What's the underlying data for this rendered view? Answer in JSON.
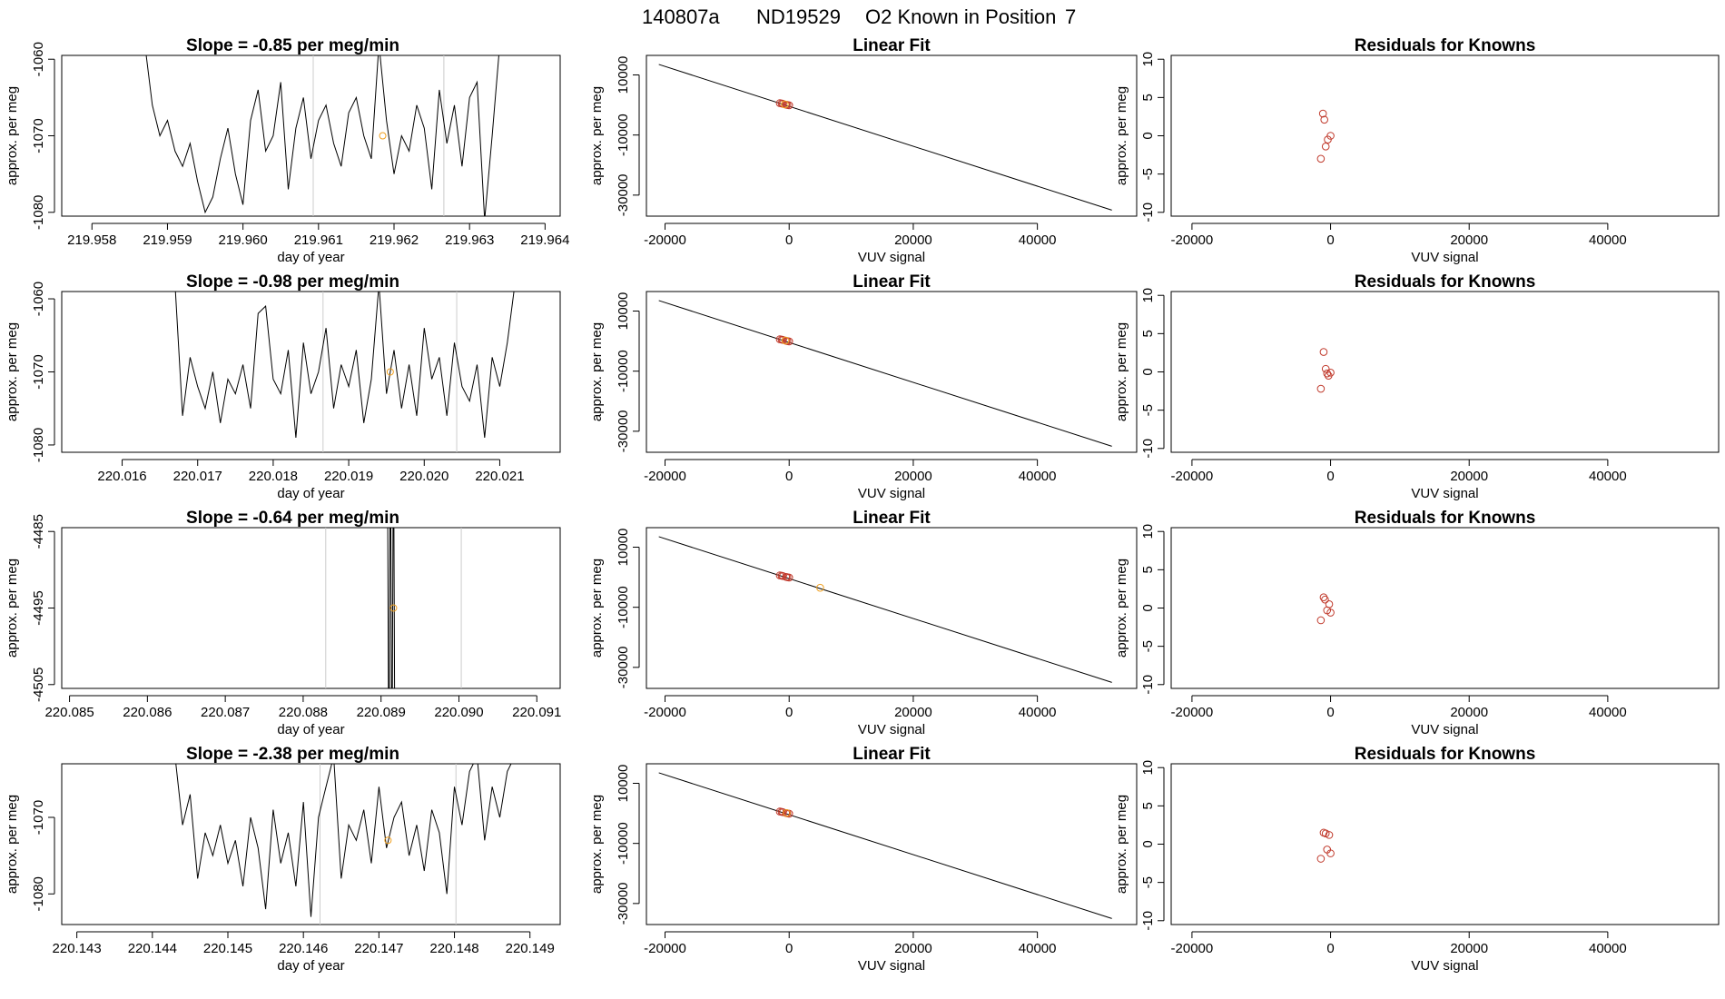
{
  "figure_title": {
    "run": "140807a",
    "sample": "ND19529",
    "desc": "O2 Known in Position",
    "position": "7"
  },
  "chart_data": [
    {
      "type": "line",
      "title_prefix": "Slope = ",
      "slope": "-0.85",
      "title_suffix": " per meg/min",
      "xlabel": "day of year",
      "ylabel": "approx. per meg",
      "xlim": [
        219.9576,
        219.9642
      ],
      "ylim": [
        -1080.5,
        -1059.5
      ],
      "xticks": [
        "219.958",
        "219.959",
        "219.960",
        "219.961",
        "219.962",
        "219.963",
        "219.964"
      ],
      "yticks": [
        "-1060",
        "-1070",
        "-1080"
      ],
      "x": [
        219.9587,
        219.9588,
        219.9589,
        219.959,
        219.9591,
        219.9592,
        219.9593,
        219.9594,
        219.9595,
        219.9596,
        219.9597,
        219.9598,
        219.9599,
        219.96,
        219.9601,
        219.9602,
        219.9603,
        219.9604,
        219.9605,
        219.9606,
        219.9607,
        219.9608,
        219.9609,
        219.961,
        219.9611,
        219.9612,
        219.9613,
        219.9614,
        219.9615,
        219.9616,
        219.9617,
        219.9618,
        219.9619,
        219.962,
        219.9621,
        219.9622,
        219.9623,
        219.9624,
        219.9625,
        219.9626,
        219.9627,
        219.9628,
        219.9629,
        219.963,
        219.9631,
        219.9632,
        219.9633,
        219.9634
      ],
      "y": [
        -1058,
        -1066,
        -1070,
        -1068,
        -1072,
        -1074,
        -1071,
        -1076,
        -1080,
        -1078,
        -1073,
        -1069,
        -1075,
        -1079,
        -1068,
        -1064,
        -1072,
        -1070,
        -1063,
        -1077,
        -1069,
        -1065,
        -1073,
        -1068,
        -1066,
        -1071,
        -1074,
        -1067,
        -1065,
        -1070,
        -1073,
        -1058,
        -1068,
        -1075,
        -1070,
        -1072,
        -1066,
        -1069,
        -1077,
        -1064,
        -1071,
        -1066,
        -1074,
        -1065,
        -1063,
        -1081,
        -1070,
        -1058
      ],
      "vlines": [
        219.96093,
        219.96266
      ],
      "known": {
        "x": 219.96185,
        "y": -1070
      }
    },
    {
      "type": "scatter",
      "title": "Linear Fit",
      "xlabel": "VUV signal",
      "ylabel": "approx. per meg",
      "xlim": [
        -23000,
        56000
      ],
      "ylim": [
        -37000,
        16500
      ],
      "xticks": [
        "-20000",
        "0",
        "20000",
        "40000"
      ],
      "xtick_values": [
        -20000,
        0,
        20000,
        40000
      ],
      "yticks": [
        "10000",
        "-10000",
        "-30000"
      ],
      "ytick_values": [
        10000,
        -10000,
        -30000
      ],
      "line": {
        "x": [
          -21000,
          52000
        ],
        "y": [
          13500,
          -35000
        ]
      },
      "points": [
        {
          "x": -1500,
          "y": 600
        },
        {
          "x": -1000,
          "y": 400
        },
        {
          "x": -500,
          "y": 100
        },
        {
          "x": 0,
          "y": -100
        },
        {
          "x": -1200,
          "y": 500
        },
        {
          "x": -300,
          "y": 0
        }
      ],
      "known_points": [
        {
          "x": -700,
          "y": 200
        }
      ]
    },
    {
      "type": "scatter",
      "title": "Residuals for Knowns",
      "xlabel": "VUV signal",
      "ylabel": "approx. per meg",
      "xlim": [
        -23000,
        56000
      ],
      "ylim": [
        -10.5,
        10.5
      ],
      "xticks": [
        "-20000",
        "0",
        "20000",
        "40000"
      ],
      "xtick_values": [
        -20000,
        0,
        20000,
        40000
      ],
      "yticks": [
        "10",
        "5",
        "0",
        "-5",
        "-10"
      ],
      "ytick_values": [
        10,
        5,
        0,
        -5,
        -10
      ],
      "points": [
        {
          "x": -1100,
          "y": 2.9
        },
        {
          "x": -900,
          "y": 2.1
        },
        {
          "x": 0,
          "y": 0
        },
        {
          "x": -400,
          "y": -0.5
        },
        {
          "x": -700,
          "y": -1.4
        },
        {
          "x": -1400,
          "y": -3.0
        }
      ]
    },
    {
      "type": "line",
      "title_prefix": "Slope = ",
      "slope": "-0.98",
      "title_suffix": " per meg/min",
      "xlabel": "day of year",
      "ylabel": "approx. per meg",
      "xlim": [
        220.0152,
        220.0218
      ],
      "ylim": [
        -1081,
        -1059
      ],
      "xticks": [
        "220.016",
        "220.017",
        "220.018",
        "220.019",
        "220.020",
        "220.021"
      ],
      "yticks": [
        "-1060",
        "-1070",
        "-1080"
      ],
      "x": [
        220.0167,
        220.0168,
        220.0169,
        220.017,
        220.0171,
        220.0172,
        220.0173,
        220.0174,
        220.0175,
        220.0176,
        220.0177,
        220.0178,
        220.0179,
        220.018,
        220.0181,
        220.0182,
        220.0183,
        220.0184,
        220.0185,
        220.0186,
        220.0187,
        220.0188,
        220.0189,
        220.019,
        220.0191,
        220.0192,
        220.0193,
        220.0194,
        220.0195,
        220.0196,
        220.0197,
        220.0198,
        220.0199,
        220.02,
        220.0201,
        220.0202,
        220.0203,
        220.0204,
        220.0205,
        220.0206,
        220.0207,
        220.0208,
        220.0209,
        220.021,
        220.0211,
        220.0212
      ],
      "y": [
        -1058,
        -1076,
        -1068,
        -1072,
        -1075,
        -1070,
        -1077,
        -1071,
        -1073,
        -1069,
        -1075,
        -1062,
        -1061,
        -1071,
        -1073,
        -1067,
        -1079,
        -1066,
        -1073,
        -1070,
        -1064,
        -1075,
        -1069,
        -1072,
        -1067,
        -1077,
        -1071,
        -1058,
        -1073,
        -1067,
        -1075,
        -1069,
        -1076,
        -1064,
        -1071,
        -1068,
        -1076,
        -1066,
        -1072,
        -1074,
        -1069,
        -1079,
        -1068,
        -1072,
        -1066,
        -1058
      ],
      "vlines": [
        220.01866,
        220.02043
      ],
      "known": {
        "x": 220.01955,
        "y": -1070
      }
    },
    {
      "type": "scatter",
      "title": "Linear Fit",
      "xlabel": "VUV signal",
      "ylabel": "approx. per meg",
      "xlim": [
        -23000,
        56000
      ],
      "ylim": [
        -37000,
        16500
      ],
      "xticks": [
        "-20000",
        "0",
        "20000",
        "40000"
      ],
      "xtick_values": [
        -20000,
        0,
        20000,
        40000
      ],
      "yticks": [
        "10000",
        "-10000",
        "-30000"
      ],
      "ytick_values": [
        10000,
        -10000,
        -30000
      ],
      "line": {
        "x": [
          -21000,
          52000
        ],
        "y": [
          13500,
          -35000
        ]
      },
      "points": [
        {
          "x": -1500,
          "y": 600
        },
        {
          "x": -1000,
          "y": 400
        },
        {
          "x": -500,
          "y": 100
        },
        {
          "x": 0,
          "y": -100
        },
        {
          "x": -1200,
          "y": 500
        },
        {
          "x": -300,
          "y": 0
        }
      ],
      "known_points": [
        {
          "x": -600,
          "y": 200
        }
      ]
    },
    {
      "type": "scatter",
      "title": "Residuals for Knowns",
      "xlabel": "VUV signal",
      "ylabel": "approx. per meg",
      "xlim": [
        -23000,
        56000
      ],
      "ylim": [
        -10.5,
        10.5
      ],
      "xticks": [
        "-20000",
        "0",
        "20000",
        "40000"
      ],
      "xtick_values": [
        -20000,
        0,
        20000,
        40000
      ],
      "yticks": [
        "10",
        "5",
        "0",
        "-5",
        "-10"
      ],
      "ytick_values": [
        10,
        5,
        0,
        -5,
        -10
      ],
      "points": [
        {
          "x": -1000,
          "y": 2.6
        },
        {
          "x": -700,
          "y": 0.4
        },
        {
          "x": 0,
          "y": -0.1
        },
        {
          "x": -300,
          "y": -0.5
        },
        {
          "x": -500,
          "y": -0.2
        },
        {
          "x": -1400,
          "y": -2.2
        }
      ]
    },
    {
      "type": "line",
      "title_prefix": "Slope = ",
      "slope": "-0.64",
      "title_suffix": " per meg/min",
      "xlabel": "day of year",
      "ylabel": "approx. per meg",
      "xlim": [
        220.0849,
        220.0913
      ],
      "ylim": [
        -4505.5,
        -4484.5
      ],
      "xticks": [
        "220.085",
        "220.086",
        "220.087",
        "220.088",
        "220.089",
        "220.090",
        "220.091"
      ],
      "yticks": [
        "-4485",
        "-4495",
        "-4505"
      ],
      "x": [
        220.08908,
        220.0891,
        220.08912,
        220.08914,
        220.08916,
        220.08918
      ],
      "y": [
        -4470,
        -4520,
        -4470,
        -4520,
        -4470,
        -4520
      ],
      "vlines": [
        220.08829,
        220.09003
      ],
      "known": {
        "x": 220.08916,
        "y": -4495
      }
    },
    {
      "type": "scatter",
      "title": "Linear Fit",
      "xlabel": "VUV signal",
      "ylabel": "approx. per meg",
      "xlim": [
        -23000,
        56000
      ],
      "ylim": [
        -37000,
        16500
      ],
      "xticks": [
        "-20000",
        "0",
        "20000",
        "40000"
      ],
      "xtick_values": [
        -20000,
        0,
        20000,
        40000
      ],
      "yticks": [
        "10000",
        "-10000",
        "-30000"
      ],
      "ytick_values": [
        10000,
        -10000,
        -30000
      ],
      "line": {
        "x": [
          -21000,
          52000
        ],
        "y": [
          13500,
          -35000
        ]
      },
      "points": [
        {
          "x": -1500,
          "y": 600
        },
        {
          "x": -1000,
          "y": 400
        },
        {
          "x": -500,
          "y": 100
        },
        {
          "x": 0,
          "y": -100
        },
        {
          "x": -1200,
          "y": 500
        },
        {
          "x": -300,
          "y": 0
        }
      ],
      "known_points": [
        {
          "x": 5000,
          "y": -3500
        }
      ]
    },
    {
      "type": "scatter",
      "title": "Residuals for Knowns",
      "xlabel": "VUV signal",
      "ylabel": "approx. per meg",
      "xlim": [
        -23000,
        56000
      ],
      "ylim": [
        -10.5,
        10.5
      ],
      "xticks": [
        "-20000",
        "0",
        "20000",
        "40000"
      ],
      "xtick_values": [
        -20000,
        0,
        20000,
        40000
      ],
      "yticks": [
        "10",
        "5",
        "0",
        "-5",
        "-10"
      ],
      "ytick_values": [
        10,
        5,
        0,
        -5,
        -10
      ],
      "points": [
        {
          "x": -1000,
          "y": 1.4
        },
        {
          "x": -800,
          "y": 1.1
        },
        {
          "x": -200,
          "y": 0.5
        },
        {
          "x": -500,
          "y": -0.3
        },
        {
          "x": 0,
          "y": -0.6
        },
        {
          "x": -1400,
          "y": -1.6
        }
      ]
    },
    {
      "type": "line",
      "title_prefix": "Slope = ",
      "slope": "-2.38",
      "title_suffix": " per meg/min",
      "xlabel": "day of year",
      "ylabel": "approx. per meg",
      "xlim": [
        220.1428,
        220.1494
      ],
      "ylim": [
        -1084,
        -1063
      ],
      "xticks": [
        "220.143",
        "220.144",
        "220.145",
        "220.146",
        "220.147",
        "220.148",
        "220.149"
      ],
      "yticks": [
        "-1070",
        "-1080"
      ],
      "x": [
        220.1443,
        220.1444,
        220.1445,
        220.1446,
        220.1447,
        220.1448,
        220.1449,
        220.145,
        220.1451,
        220.1452,
        220.1453,
        220.1454,
        220.1455,
        220.1456,
        220.1457,
        220.1458,
        220.1459,
        220.146,
        220.1461,
        220.1462,
        220.1463,
        220.1464,
        220.1465,
        220.1466,
        220.1467,
        220.1468,
        220.1469,
        220.147,
        220.1471,
        220.1472,
        220.1473,
        220.1474,
        220.1475,
        220.1476,
        220.1477,
        220.1478,
        220.1479,
        220.148,
        220.1481,
        220.1482,
        220.1483,
        220.1484,
        220.1485,
        220.1486,
        220.1487,
        220.1488
      ],
      "y": [
        -1062,
        -1071,
        -1067,
        -1078,
        -1072,
        -1075,
        -1071,
        -1076,
        -1073,
        -1079,
        -1070,
        -1074,
        -1082,
        -1069,
        -1076,
        -1072,
        -1079,
        -1068,
        -1083,
        -1070,
        -1066,
        -1062,
        -1078,
        -1071,
        -1073,
        -1069,
        -1076,
        -1066,
        -1074,
        -1070,
        -1068,
        -1075,
        -1071,
        -1077,
        -1069,
        -1072,
        -1080,
        -1066,
        -1071,
        -1064,
        -1062,
        -1073,
        -1066,
        -1070,
        -1064,
        -1062
      ],
      "vlines": [
        220.14622,
        220.14802
      ],
      "known": {
        "x": 220.14712,
        "y": -1073
      }
    },
    {
      "type": "scatter",
      "title": "Linear Fit",
      "xlabel": "VUV signal",
      "ylabel": "approx. per meg",
      "xlim": [
        -23000,
        56000
      ],
      "ylim": [
        -37000,
        16500
      ],
      "xticks": [
        "-20000",
        "0",
        "20000",
        "40000"
      ],
      "xtick_values": [
        -20000,
        0,
        20000,
        40000
      ],
      "yticks": [
        "10000",
        "-10000",
        "-30000"
      ],
      "ytick_values": [
        10000,
        -10000,
        -30000
      ],
      "line": {
        "x": [
          -21000,
          52000
        ],
        "y": [
          13500,
          -35000
        ]
      },
      "points": [
        {
          "x": -1500,
          "y": 600
        },
        {
          "x": -1000,
          "y": 400
        },
        {
          "x": -500,
          "y": 100
        },
        {
          "x": 0,
          "y": -100
        },
        {
          "x": -1200,
          "y": 500
        },
        {
          "x": -300,
          "y": 0
        }
      ],
      "known_points": [
        {
          "x": -400,
          "y": 100
        }
      ]
    },
    {
      "type": "scatter",
      "title": "Residuals for Knowns",
      "xlabel": "VUV signal",
      "ylabel": "approx. per meg",
      "xlim": [
        -23000,
        56000
      ],
      "ylim": [
        -10.5,
        10.5
      ],
      "xticks": [
        "-20000",
        "0",
        "20000",
        "40000"
      ],
      "xtick_values": [
        -20000,
        0,
        20000,
        40000
      ],
      "yticks": [
        "10",
        "5",
        "0",
        "-5",
        "-10"
      ],
      "ytick_values": [
        10,
        5,
        0,
        -5,
        -10
      ],
      "points": [
        {
          "x": -1000,
          "y": 1.5
        },
        {
          "x": -700,
          "y": 1.4
        },
        {
          "x": -200,
          "y": 1.2
        },
        {
          "x": -500,
          "y": -0.7
        },
        {
          "x": 0,
          "y": -1.2
        },
        {
          "x": -1400,
          "y": -1.9
        }
      ]
    }
  ]
}
